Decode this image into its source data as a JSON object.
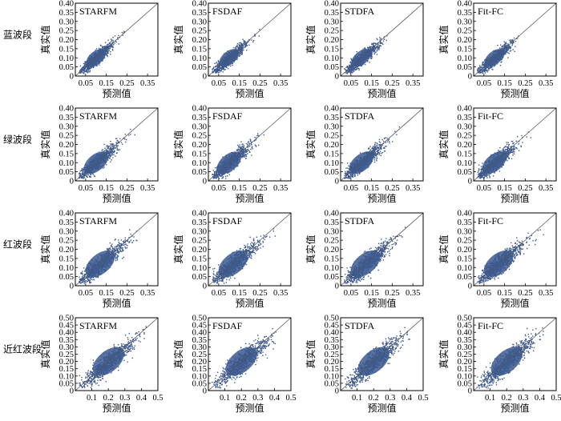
{
  "chart_data": {
    "type": "scatter",
    "xlabel": "预测值",
    "ylabel": "真实值",
    "columns": [
      "STARFM",
      "FSDAF",
      "STDFA",
      "Fit-FC"
    ],
    "rows": [
      {
        "label": "蓝波段",
        "xlim": [
          0,
          0.4
        ],
        "ylim": [
          0,
          0.4
        ],
        "xticks": [
          0.05,
          0.15,
          0.25,
          0.35
        ],
        "xtick_labels": [
          "0.05",
          "0.15",
          "0.25",
          "0.35"
        ],
        "yticks": [
          0,
          0.05,
          0.1,
          0.15,
          0.2,
          0.25,
          0.3,
          0.35,
          0.4
        ],
        "ytick_labels": [
          "0",
          "0.05",
          "0.10",
          "0.15",
          "0.20",
          "0.25",
          "0.30",
          "0.35",
          "0.40"
        ],
        "panels": [
          {
            "method": "STARFM",
            "center": [
              0.1,
              0.1
            ],
            "spread": 0.04,
            "max_x": 0.27,
            "max_y": 0.27
          },
          {
            "method": "FSDAF",
            "center": [
              0.1,
              0.1
            ],
            "spread": 0.04,
            "max_x": 0.25,
            "max_y": 0.28
          },
          {
            "method": "STDFA",
            "center": [
              0.1,
              0.1
            ],
            "spread": 0.04,
            "max_x": 0.25,
            "max_y": 0.3
          },
          {
            "method": "Fit-FC",
            "center": [
              0.1,
              0.1
            ],
            "spread": 0.04,
            "max_x": 0.3,
            "max_y": 0.34
          }
        ]
      },
      {
        "label": "绿波段",
        "xlim": [
          0,
          0.4
        ],
        "ylim": [
          0,
          0.4
        ],
        "xticks": [
          0.05,
          0.15,
          0.25,
          0.35
        ],
        "xtick_labels": [
          "0.05",
          "0.15",
          "0.25",
          "0.35"
        ],
        "yticks": [
          0,
          0.05,
          0.1,
          0.15,
          0.2,
          0.25,
          0.3,
          0.35,
          0.4
        ],
        "ytick_labels": [
          "0",
          "0.05",
          "0.10",
          "0.15",
          "0.20",
          "0.25",
          "0.30",
          "0.35",
          "0.40"
        ],
        "panels": [
          {
            "method": "STARFM",
            "center": [
              0.1,
              0.1
            ],
            "spread": 0.05,
            "max_x": 0.32,
            "max_y": 0.33
          },
          {
            "method": "FSDAF",
            "center": [
              0.1,
              0.1
            ],
            "spread": 0.05,
            "max_x": 0.3,
            "max_y": 0.32
          },
          {
            "method": "STDFA",
            "center": [
              0.1,
              0.1
            ],
            "spread": 0.05,
            "max_x": 0.32,
            "max_y": 0.33
          },
          {
            "method": "Fit-FC",
            "center": [
              0.1,
              0.1
            ],
            "spread": 0.05,
            "max_x": 0.37,
            "max_y": 0.38
          }
        ]
      },
      {
        "label": "红波段",
        "xlim": [
          0,
          0.4
        ],
        "ylim": [
          0,
          0.4
        ],
        "xticks": [
          0.05,
          0.15,
          0.25,
          0.35
        ],
        "xtick_labels": [
          "0.05",
          "0.15",
          "0.25",
          "0.35"
        ],
        "yticks": [
          0,
          0.05,
          0.1,
          0.15,
          0.2,
          0.25,
          0.3,
          0.35,
          0.4
        ],
        "ytick_labels": [
          "0",
          "0.05",
          "0.10",
          "0.15",
          "0.20",
          "0.25",
          "0.30",
          "0.35",
          "0.40"
        ],
        "panels": [
          {
            "method": "STARFM",
            "center": [
              0.12,
              0.12
            ],
            "spread": 0.06,
            "max_x": 0.36,
            "max_y": 0.35
          },
          {
            "method": "FSDAF",
            "center": [
              0.12,
              0.12
            ],
            "spread": 0.06,
            "max_x": 0.34,
            "max_y": 0.33
          },
          {
            "method": "STDFA",
            "center": [
              0.12,
              0.12
            ],
            "spread": 0.06,
            "max_x": 0.37,
            "max_y": 0.36
          },
          {
            "method": "Fit-FC",
            "center": [
              0.12,
              0.12
            ],
            "spread": 0.06,
            "max_x": 0.38,
            "max_y": 0.37
          }
        ]
      },
      {
        "label": "近红波段",
        "xlim": [
          0,
          0.5
        ],
        "ylim": [
          0,
          0.5
        ],
        "xticks": [
          0.1,
          0.2,
          0.3,
          0.4,
          0.5
        ],
        "xtick_labels": [
          "0.1",
          "0.2",
          "0.3",
          "0.4",
          "0.5"
        ],
        "yticks": [
          0,
          0.05,
          0.1,
          0.15,
          0.2,
          0.25,
          0.3,
          0.35,
          0.4,
          0.45,
          0.5
        ],
        "ytick_labels": [
          "0",
          "0.05",
          "0.10",
          "0.15",
          "0.20",
          "0.25",
          "0.30",
          "0.35",
          "0.40",
          "0.45",
          "0.50"
        ],
        "panels": [
          {
            "method": "STARFM",
            "center": [
              0.2,
              0.2
            ],
            "spread": 0.08,
            "max_x": 0.44,
            "max_y": 0.45
          },
          {
            "method": "FSDAF",
            "center": [
              0.2,
              0.2
            ],
            "spread": 0.08,
            "max_x": 0.42,
            "max_y": 0.44
          },
          {
            "method": "STDFA",
            "center": [
              0.2,
              0.2
            ],
            "spread": 0.08,
            "max_x": 0.42,
            "max_y": 0.44
          },
          {
            "method": "Fit-FC",
            "center": [
              0.2,
              0.2
            ],
            "spread": 0.08,
            "max_x": 0.45,
            "max_y": 0.44
          }
        ]
      }
    ],
    "grid": false,
    "reference_line": "y = x",
    "point_color": "#3d5a8f"
  }
}
